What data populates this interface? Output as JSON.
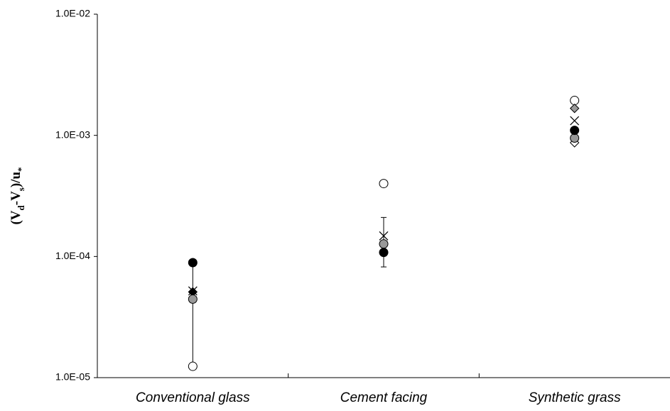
{
  "chart_data": {
    "type": "scatter",
    "y_label": [
      "(V",
      "d",
      "-V",
      "s",
      ")/u",
      "*"
    ],
    "categories": [
      "Conventional glass",
      "Cement facing",
      "Synthetic grass"
    ],
    "log_y": true,
    "ylim": [
      1e-05,
      0.01
    ],
    "yticks": [
      {
        "value": 1e-05,
        "label": "1.0E-05"
      },
      {
        "value": 0.0001,
        "label": "1.0E-04"
      },
      {
        "value": 0.001,
        "label": "1.0E-03"
      },
      {
        "value": 0.01,
        "label": "1.0E-02"
      }
    ],
    "grid": false,
    "ranges": {
      "lows": [
        1.24e-05,
        8.2e-05,
        null
      ],
      "highs": [
        8.9e-05,
        0.00021,
        null
      ],
      "color": "#000000"
    },
    "series": [
      {
        "marker": "circle",
        "fill": "#ffffff",
        "color": "#000000",
        "values": [
          1.24e-05,
          0.0004,
          0.00194
        ]
      },
      {
        "marker": "diamond",
        "fill": "#999999",
        "color": "#000000",
        "values": [
          null,
          null,
          0.00167
        ]
      },
      {
        "marker": "diamond",
        "fill": "#ffffff",
        "color": "#000000",
        "values": [
          null,
          null,
          0.00087
        ]
      },
      {
        "marker": "diamond",
        "fill": "#000000",
        "color": "#000000",
        "values": [
          5.1e-05,
          null,
          null
        ]
      },
      {
        "marker": "x",
        "fill": "none",
        "color": "#000000",
        "values": [
          5.2e-05,
          0.000148,
          0.00132
        ]
      },
      {
        "marker": "circle",
        "fill": "#999999",
        "color": "#000000",
        "values": [
          4.45e-05,
          0.000127,
          0.00095
        ]
      },
      {
        "marker": "circle",
        "fill": "#000000",
        "color": "#000000",
        "values": [
          8.9e-05,
          0.000108,
          0.0011
        ]
      }
    ]
  }
}
